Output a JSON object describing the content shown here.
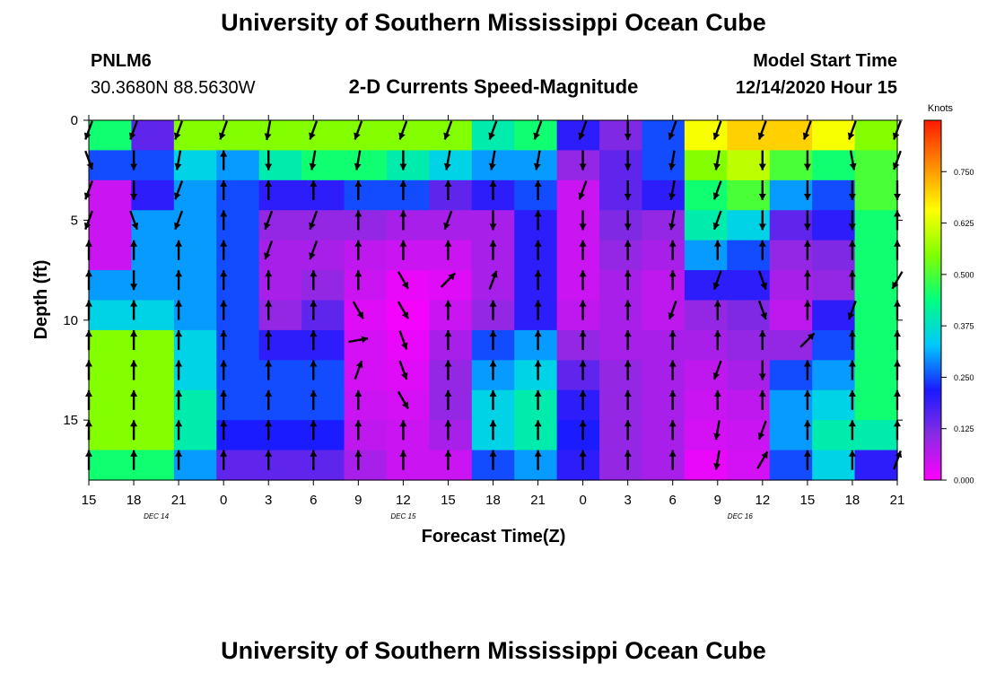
{
  "page": {
    "title_top": "University of Southern Mississippi Ocean Cube",
    "title_bottom": "University of Southern Mississippi Ocean Cube",
    "station_id": "PNLM6",
    "station_coords": "30.3680N 88.5630W",
    "plot_title": "2-D Currents Speed-Magnitude",
    "model_start_label": "Model Start Time",
    "model_start_value": "12/14/2020 Hour 15"
  },
  "colors": {
    "scale": [
      "#ff00ff",
      "#8a2be2",
      "#1a1aff",
      "#00c8ff",
      "#00ff80",
      "#80ff00",
      "#ffff00",
      "#ff8c00",
      "#ff1a00"
    ],
    "arrow": "#000000"
  },
  "chart_data": {
    "type": "heatmap",
    "title": "2-D Currents Speed-Magnitude",
    "xlabel": "Forecast Time(Z)",
    "ylabel": "Depth (ft)",
    "x_tick_labels": [
      "15",
      "18",
      "21",
      "0",
      "3",
      "6",
      "9",
      "12",
      "15",
      "18",
      "21",
      "0",
      "3",
      "6",
      "9",
      "12",
      "15",
      "18",
      "21"
    ],
    "date_labels": [
      {
        "label": "DEC 14",
        "tick_index": 1.5
      },
      {
        "label": "DEC 15",
        "tick_index": 7
      },
      {
        "label": "DEC 16",
        "tick_index": 14.5
      }
    ],
    "y_ticks": [
      0,
      5,
      10,
      15
    ],
    "ylim": [
      0,
      18
    ],
    "x_range_hours": [
      0,
      54
    ],
    "colorbar": {
      "title": "Knots",
      "range": [
        0,
        0.875
      ],
      "tick_values": [
        0.0,
        0.125,
        0.25,
        0.375,
        0.5,
        0.625,
        0.75
      ],
      "tick_labels": [
        "0.000",
        "0.125",
        "0.250",
        "0.375",
        "0.500",
        "0.625",
        "0.750"
      ]
    },
    "depth_levels_ft": [
      0.5,
      2,
      3.5,
      5,
      6.5,
      8,
      9.5,
      11,
      12.5,
      14,
      15.5,
      17
    ],
    "time_columns_hours": [
      0,
      3,
      6,
      9,
      12,
      15,
      18,
      21,
      24,
      27,
      30,
      33,
      36,
      39,
      42,
      45,
      48,
      51,
      54
    ],
    "speed_knots": [
      [
        0.45,
        0.15,
        0.55,
        0.55,
        0.55,
        0.55,
        0.55,
        0.55,
        0.55,
        0.4,
        0.45,
        0.2,
        0.12,
        0.25,
        0.65,
        0.7,
        0.7,
        0.65,
        0.55
      ],
      [
        0.25,
        0.25,
        0.35,
        0.3,
        0.4,
        0.45,
        0.45,
        0.4,
        0.35,
        0.3,
        0.3,
        0.1,
        0.15,
        0.25,
        0.55,
        0.6,
        0.5,
        0.45,
        0.5
      ],
      [
        0.05,
        0.2,
        0.3,
        0.25,
        0.2,
        0.2,
        0.25,
        0.25,
        0.15,
        0.2,
        0.25,
        0.05,
        0.15,
        0.2,
        0.45,
        0.5,
        0.3,
        0.25,
        0.5
      ],
      [
        0.05,
        0.3,
        0.3,
        0.25,
        0.1,
        0.1,
        0.1,
        0.08,
        0.08,
        0.08,
        0.2,
        0.05,
        0.12,
        0.1,
        0.4,
        0.35,
        0.15,
        0.2,
        0.45
      ],
      [
        0.05,
        0.3,
        0.3,
        0.25,
        0.08,
        0.08,
        0.06,
        0.05,
        0.05,
        0.08,
        0.2,
        0.05,
        0.1,
        0.08,
        0.3,
        0.25,
        0.1,
        0.12,
        0.45
      ],
      [
        0.3,
        0.3,
        0.3,
        0.25,
        0.08,
        0.1,
        0.05,
        0.02,
        0.03,
        0.08,
        0.2,
        0.05,
        0.08,
        0.06,
        0.2,
        0.2,
        0.08,
        0.1,
        0.45
      ],
      [
        0.35,
        0.35,
        0.3,
        0.25,
        0.1,
        0.15,
        0.03,
        0.01,
        0.05,
        0.1,
        0.2,
        0.06,
        0.08,
        0.06,
        0.1,
        0.12,
        0.06,
        0.2,
        0.45
      ],
      [
        0.55,
        0.55,
        0.35,
        0.25,
        0.2,
        0.2,
        0.04,
        0.02,
        0.08,
        0.25,
        0.3,
        0.1,
        0.08,
        0.08,
        0.08,
        0.1,
        0.1,
        0.25,
        0.45
      ],
      [
        0.55,
        0.55,
        0.35,
        0.25,
        0.25,
        0.25,
        0.04,
        0.03,
        0.1,
        0.3,
        0.35,
        0.15,
        0.1,
        0.08,
        0.06,
        0.08,
        0.25,
        0.3,
        0.45
      ],
      [
        0.55,
        0.55,
        0.4,
        0.25,
        0.25,
        0.25,
        0.05,
        0.04,
        0.1,
        0.35,
        0.4,
        0.2,
        0.1,
        0.08,
        0.05,
        0.06,
        0.3,
        0.35,
        0.45
      ],
      [
        0.55,
        0.55,
        0.4,
        0.22,
        0.22,
        0.22,
        0.06,
        0.05,
        0.08,
        0.35,
        0.4,
        0.22,
        0.1,
        0.08,
        0.04,
        0.05,
        0.3,
        0.4,
        0.4
      ],
      [
        0.45,
        0.45,
        0.3,
        0.15,
        0.15,
        0.15,
        0.08,
        0.05,
        0.05,
        0.25,
        0.3,
        0.2,
        0.1,
        0.08,
        0.02,
        0.04,
        0.25,
        0.35,
        0.2
      ]
    ],
    "vector_direction_deg": [
      [
        200,
        200,
        200,
        200,
        190,
        200,
        200,
        200,
        200,
        200,
        200,
        200,
        180,
        200,
        200,
        200,
        200,
        200,
        200
      ],
      [
        160,
        180,
        190,
        0,
        180,
        190,
        190,
        180,
        190,
        190,
        190,
        180,
        180,
        190,
        190,
        180,
        180,
        170,
        200
      ],
      [
        200,
        180,
        200,
        0,
        0,
        0,
        0,
        0,
        0,
        0,
        0,
        200,
        180,
        190,
        200,
        180,
        180,
        180,
        180
      ],
      [
        200,
        160,
        200,
        0,
        200,
        200,
        0,
        0,
        200,
        180,
        0,
        180,
        180,
        190,
        200,
        180,
        180,
        180,
        0
      ],
      [
        0,
        0,
        0,
        0,
        200,
        200,
        0,
        0,
        0,
        0,
        0,
        0,
        0,
        0,
        0,
        0,
        0,
        0,
        0
      ],
      [
        0,
        180,
        0,
        0,
        0,
        0,
        0,
        150,
        45,
        20,
        0,
        0,
        0,
        0,
        200,
        160,
        0,
        0,
        210
      ],
      [
        0,
        0,
        0,
        0,
        0,
        0,
        150,
        150,
        0,
        0,
        0,
        0,
        0,
        200,
        0,
        160,
        0,
        200,
        0
      ],
      [
        0,
        0,
        0,
        0,
        0,
        0,
        80,
        160,
        0,
        0,
        0,
        0,
        0,
        0,
        0,
        0,
        45,
        0,
        0
      ],
      [
        0,
        0,
        0,
        0,
        0,
        0,
        20,
        160,
        0,
        0,
        0,
        0,
        0,
        0,
        200,
        180,
        0,
        0,
        0
      ],
      [
        0,
        0,
        0,
        0,
        0,
        0,
        0,
        150,
        0,
        0,
        0,
        0,
        0,
        0,
        0,
        0,
        0,
        0,
        0
      ],
      [
        0,
        0,
        0,
        0,
        0,
        0,
        0,
        0,
        0,
        0,
        0,
        0,
        0,
        0,
        190,
        200,
        0,
        0,
        0
      ],
      [
        0,
        0,
        0,
        0,
        0,
        0,
        0,
        0,
        0,
        0,
        0,
        0,
        0,
        0,
        190,
        30,
        0,
        0,
        20
      ]
    ]
  }
}
